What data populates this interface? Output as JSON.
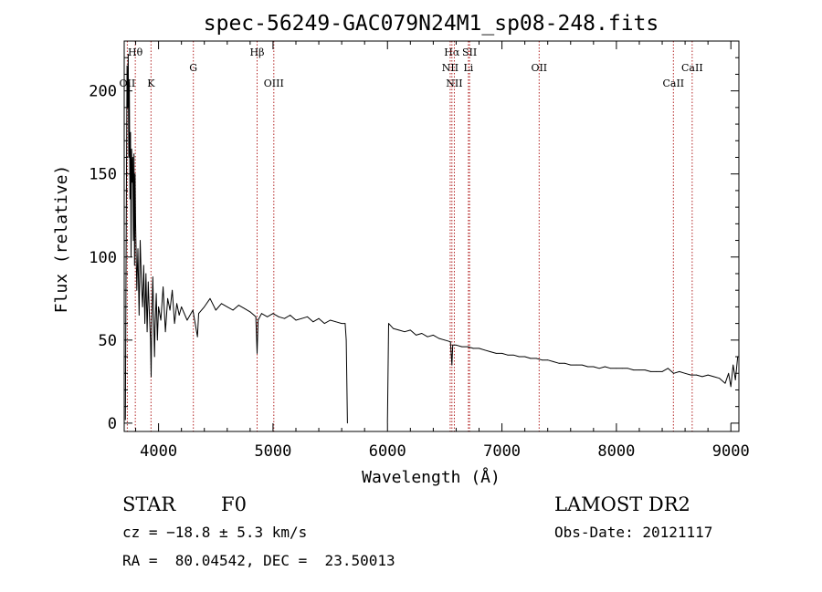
{
  "title": "spec-56249-GAC079N24M1_sp08-248.fits",
  "footer": {
    "class_label": "STAR",
    "subclass": "F0",
    "survey": "LAMOST DR2",
    "cz": "cz = −18.8 ± 5.3 km/s",
    "obs_date": "Obs-Date: 20121117",
    "radec": "RA =  80.04542, DEC =  23.50013"
  },
  "colors": {
    "line": "#000000",
    "marker": "#b22222"
  },
  "chart_data": {
    "type": "line",
    "xlabel": "Wavelength (Å)",
    "ylabel": "Flux (relative)",
    "xlim": [
      3700,
      9070
    ],
    "ylim": [
      -5,
      230
    ],
    "xticks": [
      4000,
      5000,
      6000,
      7000,
      8000,
      9000
    ],
    "yticks": [
      0,
      50,
      100,
      150,
      200
    ],
    "grid": false,
    "gap": [
      5650,
      6000
    ],
    "series": [
      {
        "x": [
          3710,
          3715,
          3720,
          3725,
          3730,
          3735,
          3740,
          3745,
          3750,
          3755,
          3760,
          3765,
          3770,
          3775,
          3780,
          3785,
          3790,
          3795,
          3800,
          3810,
          3820,
          3830,
          3840,
          3850,
          3860,
          3870,
          3880,
          3890,
          3900,
          3910,
          3920,
          3930,
          3935,
          3940,
          3950,
          3960,
          3965,
          3970,
          3980,
          3990,
          4000,
          4020,
          4040,
          4060,
          4080,
          4100,
          4120,
          4140,
          4160,
          4180,
          4200,
          4250,
          4300,
          4340,
          4350,
          4400,
          4450,
          4500,
          4550,
          4600,
          4650,
          4700,
          4750,
          4800,
          4850,
          4861,
          4870,
          4900,
          4950,
          5000,
          5050,
          5100,
          5150,
          5200,
          5250,
          5300,
          5350,
          5400,
          5450,
          5500,
          5550,
          5600,
          5630,
          5640,
          5650
        ],
        "y": [
          2,
          80,
          150,
          215,
          190,
          222,
          160,
          205,
          135,
          175,
          100,
          165,
          145,
          160,
          110,
          162,
          95,
          150,
          120,
          80,
          105,
          65,
          110,
          85,
          70,
          95,
          60,
          90,
          55,
          85,
          65,
          50,
          28,
          60,
          88,
          55,
          40,
          58,
          78,
          50,
          70,
          62,
          82,
          55,
          75,
          68,
          80,
          60,
          72,
          65,
          70,
          62,
          68,
          52,
          66,
          70,
          75,
          68,
          72,
          70,
          68,
          71,
          69,
          67,
          64,
          42,
          62,
          66,
          64,
          66,
          64,
          63,
          65,
          62,
          63,
          64,
          61,
          63,
          60,
          62,
          61,
          60,
          60,
          50,
          0
        ]
      },
      {
        "x": [
          6000,
          6010,
          6050,
          6100,
          6150,
          6200,
          6250,
          6300,
          6350,
          6400,
          6450,
          6500,
          6550,
          6563,
          6570,
          6600,
          6650,
          6700,
          6750,
          6800,
          6850,
          6900,
          6950,
          7000,
          7050,
          7100,
          7150,
          7200,
          7250,
          7300,
          7350,
          7400,
          7450,
          7500,
          7550,
          7600,
          7650,
          7700,
          7750,
          7800,
          7850,
          7900,
          7950,
          8000,
          8050,
          8100,
          8150,
          8200,
          8250,
          8300,
          8350,
          8400,
          8450,
          8500,
          8550,
          8600,
          8650,
          8700,
          8750,
          8800,
          8850,
          8900,
          8950,
          8980,
          9000,
          9020,
          9040,
          9060
        ],
        "y": [
          0,
          60,
          57,
          56,
          55,
          56,
          53,
          54,
          52,
          53,
          51,
          50,
          49,
          35,
          47,
          47,
          46,
          46,
          45,
          45,
          44,
          43,
          42,
          42,
          41,
          41,
          40,
          40,
          39,
          39,
          38,
          38,
          37,
          36,
          36,
          35,
          35,
          35,
          34,
          34,
          33,
          34,
          33,
          33,
          33,
          33,
          32,
          32,
          32,
          31,
          31,
          31,
          33,
          30,
          31,
          30,
          29,
          29,
          28,
          29,
          28,
          27,
          24,
          30,
          22,
          35,
          26,
          40
        ]
      }
    ],
    "line_markers": [
      {
        "label": "Hθ",
        "x": 3797,
        "row": 1
      },
      {
        "label": "OII",
        "x": 3727,
        "row": 3
      },
      {
        "label": "K",
        "x": 3934,
        "row": 3
      },
      {
        "label": "G",
        "x": 4304,
        "row": 2
      },
      {
        "label": "Hβ",
        "x": 4861,
        "row": 1
      },
      {
        "label": "OIII",
        "x": 5007,
        "row": 3
      },
      {
        "label": "Hα",
        "x": 6563,
        "row": 1
      },
      {
        "label": "SII",
        "x": 6717,
        "row": 1
      },
      {
        "label": "NII",
        "x": 6548,
        "row": 2
      },
      {
        "label": "Li",
        "x": 6707,
        "row": 2
      },
      {
        "label": "NII",
        "x": 6584,
        "row": 3
      },
      {
        "label": "OII",
        "x": 7325,
        "row": 2
      },
      {
        "label": "CaII",
        "x": 8662,
        "row": 2
      },
      {
        "label": "CaII",
        "x": 8498,
        "row": 3
      }
    ]
  }
}
